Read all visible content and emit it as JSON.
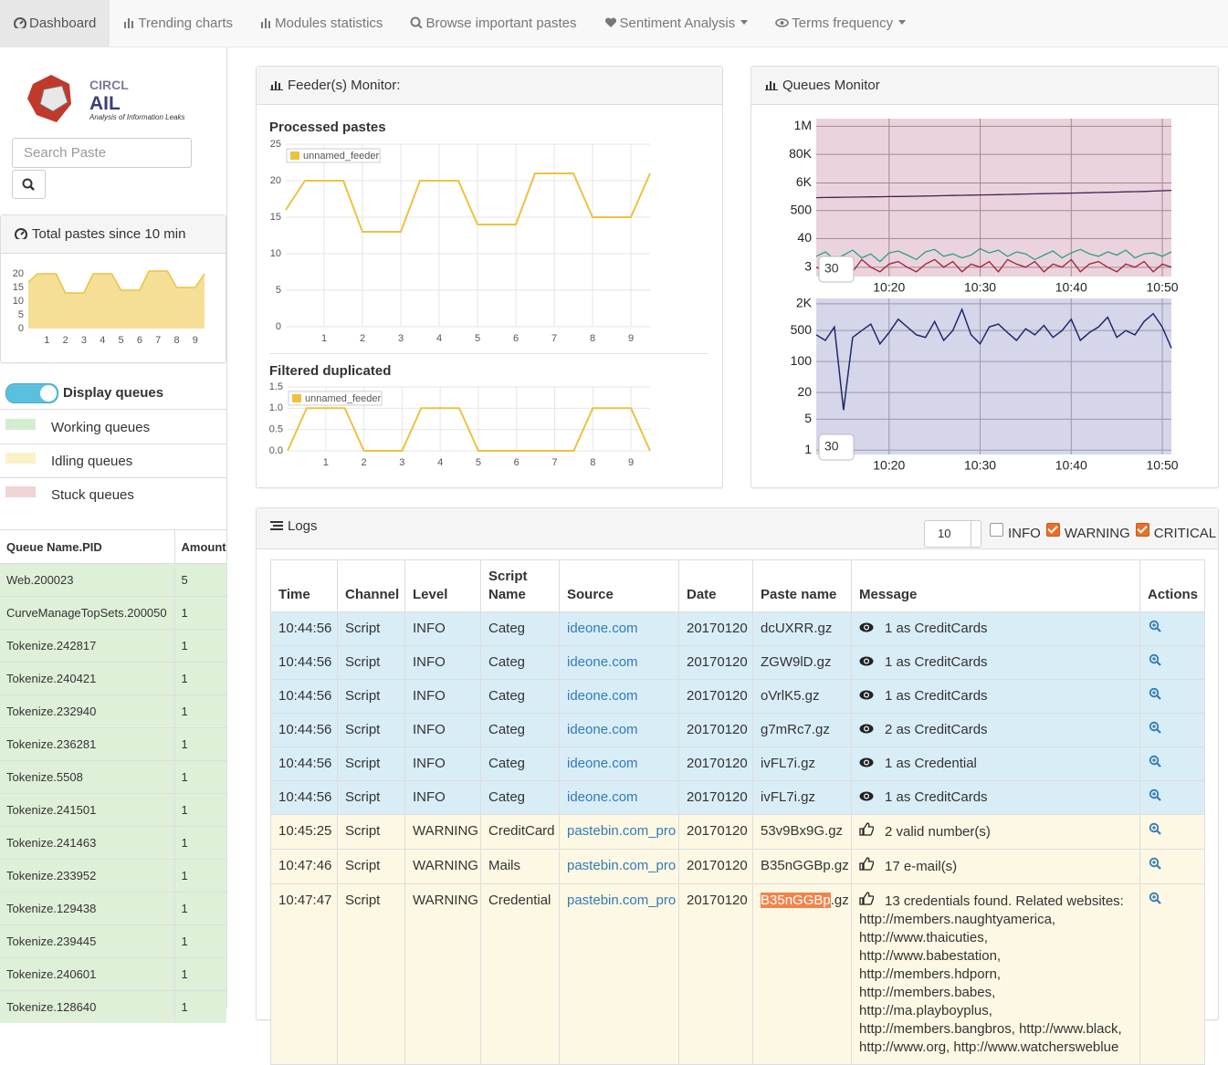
{
  "navbar": {
    "items": [
      "Dashboard",
      "Trending charts",
      "Modules statistics",
      "Browse important pastes",
      "Sentiment Analysis",
      "Terms frequency"
    ]
  },
  "sidebar": {
    "logo": {
      "org": "CIRCL",
      "name": "AIL",
      "tagline": "Analysis of Information Leaks"
    },
    "search_placeholder": "Search Paste",
    "total_pastes": {
      "title": "Total pastes since 10 min",
      "chart": {
        "type": "line",
        "area": true,
        "x": [
          0,
          0.5,
          1.5,
          2,
          3,
          3.5,
          4.5,
          5,
          6,
          6.5,
          7.5,
          8,
          9,
          9.5
        ],
        "series": [
          {
            "color": "#edc240",
            "values": [
              17,
              20,
              20,
              13,
              13,
              20,
              20,
              14,
              14,
              21,
              21,
              15,
              15,
              20
            ]
          }
        ],
        "xlim": [
          0,
          9.5
        ],
        "xticks": [
          1,
          2,
          3,
          4,
          5,
          6,
          7,
          8,
          9
        ],
        "ylim": [
          0,
          21
        ],
        "yticks": [
          0,
          5,
          10,
          15,
          20
        ],
        "grid": false
      }
    },
    "display_queues": "Display queues",
    "legend": [
      "Working queues",
      "Idling queues",
      "Stuck queues"
    ],
    "queue_table": {
      "header": [
        "Queue Name.PID",
        "Amount"
      ],
      "rows": [
        [
          "Web.200023",
          5
        ],
        [
          "CurveManageTopSets.200050",
          1
        ],
        [
          "Tokenize.242817",
          1
        ],
        [
          "Tokenize.240421",
          1
        ],
        [
          "Tokenize.232940",
          1
        ],
        [
          "Tokenize.236281",
          1
        ],
        [
          "Tokenize.5508",
          1
        ],
        [
          "Tokenize.241501",
          1
        ],
        [
          "Tokenize.241463",
          1
        ],
        [
          "Tokenize.233952",
          1
        ],
        [
          "Tokenize.129438",
          1
        ],
        [
          "Tokenize.239445",
          1
        ],
        [
          "Tokenize.240601",
          1
        ],
        [
          "Tokenize.128640",
          1
        ]
      ]
    }
  },
  "feeder_monitor": {
    "title": "Feeder(s) Monitor:",
    "charts": [
      {
        "type": "line",
        "title": "Processed pastes",
        "legend": true,
        "x": [
          0,
          0.5,
          1.5,
          2,
          3,
          3.5,
          4.5,
          5,
          6,
          6.5,
          7.5,
          8,
          9,
          9.5
        ],
        "series": [
          {
            "name": "unnamed_feeder",
            "color": "#edc240",
            "values": [
              16,
              20,
              20,
              13,
              13,
              20,
              20,
              14,
              14,
              21,
              21,
              15,
              15,
              21
            ]
          }
        ],
        "xlim": [
          0,
          9.5
        ],
        "xticks": [
          1,
          2,
          3,
          4,
          5,
          6,
          7,
          8,
          9
        ],
        "ylim": [
          0,
          25
        ],
        "yticks": [
          0,
          5,
          10,
          15,
          20,
          25
        ],
        "grid": true
      },
      {
        "type": "line",
        "title": "Filtered duplicated",
        "legend": true,
        "x": [
          0,
          0.5,
          1.5,
          2,
          3,
          3.5,
          4.5,
          5,
          7.5,
          8,
          9,
          9.5
        ],
        "series": [
          {
            "name": "unnamed_feeder",
            "color": "#edc240",
            "values": [
              0,
              1,
              1,
              0,
              0,
              1,
              1,
              0,
              0,
              1,
              1,
              0
            ]
          }
        ],
        "xlim": [
          0,
          9.5
        ],
        "xticks": [
          1,
          2,
          3,
          4,
          5,
          6,
          7,
          8,
          9
        ],
        "ylim": [
          0,
          1.5
        ],
        "yticks": [
          {
            "value": 0,
            "label": "0.0"
          },
          0.5,
          {
            "value": 1,
            "label": "1.0"
          },
          1.5
        ],
        "grid": true
      }
    ]
  },
  "queues_monitor": {
    "title": "Queues Monitor",
    "charts": [
      {
        "type": "line",
        "log_scale": true,
        "grid": true,
        "plot_background": "#ead3df",
        "range_input": "30",
        "x": [
          "10:12",
          "10:13",
          "10:14",
          "10:15",
          "10:16",
          "10:17",
          "10:18",
          "10:19",
          "10:20",
          "10:21",
          "10:22",
          "10:23",
          "10:24",
          "10:25",
          "10:26",
          "10:27",
          "10:28",
          "10:29",
          "10:30",
          "10:31",
          "10:32",
          "10:33",
          "10:34",
          "10:35",
          "10:36",
          "10:37",
          "10:38",
          "10:39",
          "10:40",
          "10:41",
          "10:42",
          "10:43",
          "10:44",
          "10:45",
          "10:46",
          "10:47",
          "10:48",
          "10:49",
          "10:50",
          "10:51"
        ],
        "series": [
          {
            "color": "#4a1f4f",
            "values": [
              1600,
              1620,
              1640,
              1660,
              1680,
              1700,
              1720,
              1740,
              1760,
              1780,
              1800,
              1830,
              1860,
              1890,
              1920,
              1950,
              1980,
              2010,
              2040,
              2070,
              2100,
              2140,
              2180,
              2220,
              2260,
              2300,
              2340,
              2380,
              2420,
              2460,
              2500,
              2550,
              2600,
              2650,
              2700,
              2750,
              2800,
              2900,
              3000,
              3100
            ]
          },
          {
            "color": "#2e9e7e",
            "values": [
              8,
              12,
              6,
              9,
              14,
              7,
              10,
              5,
              11,
              13,
              9,
              6,
              12,
              15,
              8,
              10,
              7,
              9,
              16,
              11,
              14,
              8,
              12,
              10,
              6,
              9,
              13,
              7,
              11,
              15,
              10,
              8,
              12,
              9,
              14,
              7,
              10,
              11,
              8,
              12
            ]
          },
          {
            "color": "#a0203a",
            "values": [
              3,
              2,
              5,
              4,
              2,
              6,
              3,
              2,
              4,
              5,
              3,
              2,
              4,
              6,
              3,
              5,
              2,
              4,
              3,
              5,
              2,
              6,
              4,
              3,
              5,
              2,
              4,
              3,
              6,
              2,
              4,
              5,
              3,
              2,
              4,
              3,
              5,
              2,
              4,
              3
            ]
          }
        ],
        "xlim": [
          "10:12",
          "10:51"
        ],
        "xticks": [
          "10:20",
          "10:30",
          "10:40",
          "10:50"
        ],
        "ylim": [
          1.3,
          2000000
        ],
        "yticks": [
          {
            "value": 1000000,
            "label": "1M"
          },
          {
            "value": 80000,
            "label": "80K"
          },
          {
            "value": 6000,
            "label": "6K"
          },
          500,
          40,
          3
        ]
      },
      {
        "type": "line",
        "log_scale": true,
        "grid": true,
        "plot_background": "#d6d6ea",
        "range_input": "30",
        "x": [
          "10:12",
          "10:13",
          "10:14",
          "10:15",
          "10:16",
          "10:17",
          "10:18",
          "10:19",
          "10:20",
          "10:21",
          "10:22",
          "10:23",
          "10:24",
          "10:25",
          "10:26",
          "10:27",
          "10:28",
          "10:29",
          "10:30",
          "10:31",
          "10:32",
          "10:33",
          "10:34",
          "10:35",
          "10:36",
          "10:37",
          "10:38",
          "10:39",
          "10:40",
          "10:41",
          "10:42",
          "10:43",
          "10:44",
          "10:45",
          "10:46",
          "10:47",
          "10:48",
          "10:49",
          "10:50",
          "10:51"
        ],
        "series": [
          {
            "color": "#1f2a6b",
            "values": [
              400,
              300,
              600,
              8,
              350,
              500,
              700,
              250,
              450,
              900,
              600,
              400,
              350,
              800,
              300,
              500,
              1500,
              400,
              250,
              600,
              700,
              450,
              300,
              550,
              400,
              650,
              350,
              500,
              900,
              300,
              450,
              600,
              1000,
              350,
              500,
              400,
              800,
              1200,
              600,
              200
            ]
          }
        ],
        "xlim": [
          "10:12",
          "10:51"
        ],
        "xticks": [
          "10:20",
          "10:30",
          "10:40",
          "10:50"
        ],
        "ylim": [
          0.8,
          2650
        ],
        "yticks": [
          {
            "value": 2000,
            "label": "2K"
          },
          500,
          100,
          20,
          5,
          1
        ]
      }
    ]
  },
  "logs": {
    "title": "Logs",
    "page_size": "10",
    "filters": [
      {
        "label": "INFO",
        "checked": false
      },
      {
        "label": "WARNING",
        "checked": true
      },
      {
        "label": "CRITICAL",
        "checked": true
      }
    ],
    "columns": [
      "Time",
      "Channel",
      "Level",
      "Script Name",
      "Source",
      "Date",
      "Paste name",
      "Message",
      "Actions"
    ],
    "rows": [
      {
        "time": "10:44:56",
        "channel": "Script",
        "level": "INFO",
        "script": "Categ",
        "source": "ideone.com",
        "date": "20170120",
        "paste": "dcUXRR.gz",
        "message": "1 as CreditCards"
      },
      {
        "time": "10:44:56",
        "channel": "Script",
        "level": "INFO",
        "script": "Categ",
        "source": "ideone.com",
        "date": "20170120",
        "paste": "ZGW9lD.gz",
        "message": "1 as CreditCards"
      },
      {
        "time": "10:44:56",
        "channel": "Script",
        "level": "INFO",
        "script": "Categ",
        "source": "ideone.com",
        "date": "20170120",
        "paste": "oVrlK5.gz",
        "message": "1 as CreditCards"
      },
      {
        "time": "10:44:56",
        "channel": "Script",
        "level": "INFO",
        "script": "Categ",
        "source": "ideone.com",
        "date": "20170120",
        "paste": "g7mRc7.gz",
        "message": "2 as CreditCards"
      },
      {
        "time": "10:44:56",
        "channel": "Script",
        "level": "INFO",
        "script": "Categ",
        "source": "ideone.com",
        "date": "20170120",
        "paste": "ivFL7i.gz",
        "message": "1 as Credential"
      },
      {
        "time": "10:44:56",
        "channel": "Script",
        "level": "INFO",
        "script": "Categ",
        "source": "ideone.com",
        "date": "20170120",
        "paste": "ivFL7i.gz",
        "message": "1 as CreditCards"
      },
      {
        "time": "10:45:25",
        "channel": "Script",
        "level": "WARNING",
        "script": "CreditCard",
        "source": "pastebin.com_pro",
        "date": "20170120",
        "paste": "53v9Bx9G.gz",
        "message": "2 valid number(s)"
      },
      {
        "time": "10:47:46",
        "channel": "Script",
        "level": "WARNING",
        "script": "Mails",
        "source": "pastebin.com_pro",
        "date": "20170120",
        "paste": "B35nGGBp.gz",
        "message": "17 e-mail(s)"
      },
      {
        "time": "10:47:47",
        "channel": "Script",
        "level": "WARNING",
        "script": "Credential",
        "source": "pastebin.com_pro",
        "date": "20170120",
        "paste": "B35nGGBp",
        "paste_suffix": ".gz",
        "selected": true,
        "message": "13 credentials found. Related websites: http://members.naughtyamerica, http://www.thaicuties, http://www.babestation, http://members.hdporn, http://members.babes, http://ma.playboyplus, http://members.bangbros, http://www.black, http://www.org, http://www.watchersweblue"
      }
    ]
  }
}
